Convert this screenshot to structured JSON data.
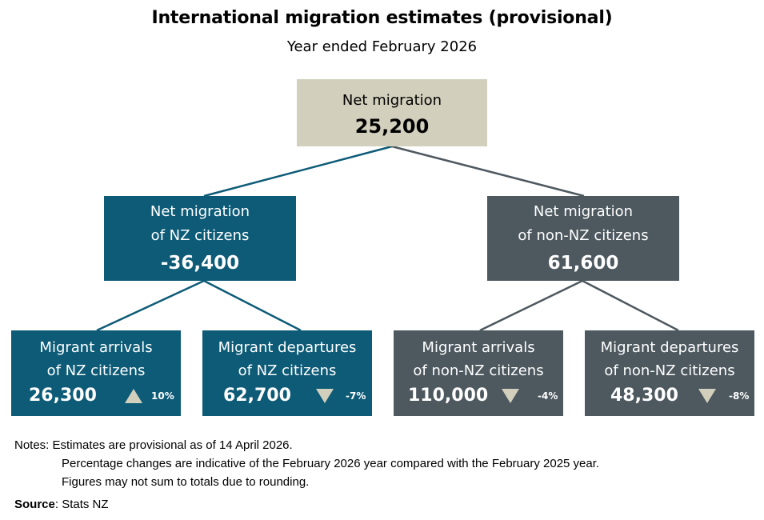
{
  "title": "International migration estimates (provisional)",
  "subtitle": "Year ended February 2026",
  "root": {
    "line1": "Net migration",
    "value": "25,200"
  },
  "nz": {
    "line1": "Net migration",
    "line2": "of NZ citizens",
    "value": "-36,400",
    "arrivals": {
      "line1": "Migrant arrivals",
      "line2": "of NZ citizens",
      "value": "26,300",
      "direction": "up",
      "pct": "10%"
    },
    "departures": {
      "line1": "Migrant departures",
      "line2": "of NZ citizens",
      "value": "62,700",
      "direction": "down",
      "pct": "-7%"
    }
  },
  "non_nz": {
    "line1": "Net migration",
    "line2": "of non-NZ citizens",
    "value": "61,600",
    "arrivals": {
      "line1": "Migrant arrivals",
      "line2": "of non-NZ citizens",
      "value": "110,000",
      "direction": "down",
      "pct": "-4%"
    },
    "departures": {
      "line1": "Migrant departures",
      "line2": "of non-NZ citizens",
      "value": "48,300",
      "direction": "down",
      "pct": "-8%"
    }
  },
  "notes": {
    "label": "Notes:",
    "lines": [
      "Estimates are provisional as of 14 April 2026.",
      "Percentage changes are indicative of the February 2026 year compared with the February 2025 year.",
      "Figures may not sum to totals due to rounding."
    ]
  },
  "source": {
    "label": "Source",
    "text": ": Stats NZ"
  },
  "colors": {
    "teal": "#0d5b77",
    "slate": "#4d585f",
    "beige": "#d2cfbd"
  }
}
